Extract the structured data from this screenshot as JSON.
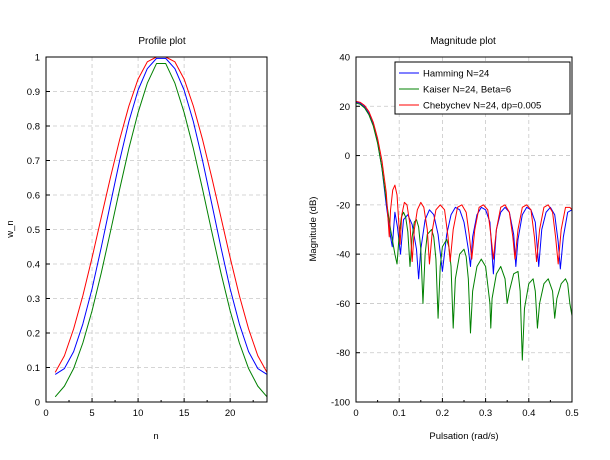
{
  "colors": {
    "hamming": "#0000ff",
    "kaiser": "#008000",
    "chebychev": "#ff0000",
    "grid": "#c8c8c8"
  },
  "chart_data": [
    {
      "type": "line",
      "title": "Profile plot",
      "xlabel": "n",
      "ylabel": "w_n",
      "xlim": [
        0,
        24
      ],
      "ylim": [
        0,
        1
      ],
      "xticks": [
        0,
        5,
        10,
        15,
        20
      ],
      "yticks": [
        0,
        0.1,
        0.2,
        0.3,
        0.4,
        0.5,
        0.6,
        0.7,
        0.8,
        0.9,
        1
      ],
      "xtick_labels": [
        "0",
        "5",
        "10",
        "15",
        "20"
      ],
      "ytick_labels": [
        "0",
        "0.1",
        "0.2",
        "0.3",
        "0.4",
        "0.5",
        "0.6",
        "0.7",
        "0.8",
        "0.9",
        "1"
      ],
      "grid": true,
      "x": [
        1,
        2,
        3,
        4,
        5,
        6,
        7,
        8,
        9,
        10,
        11,
        12,
        13,
        14,
        15,
        16,
        17,
        18,
        19,
        20,
        21,
        22,
        23,
        24
      ],
      "series": [
        {
          "key": "hamming",
          "color": "#0000ff",
          "values": [
            0.08,
            0.097,
            0.146,
            0.226,
            0.328,
            0.448,
            0.575,
            0.7,
            0.813,
            0.904,
            0.966,
            0.996,
            0.996,
            0.966,
            0.904,
            0.813,
            0.7,
            0.575,
            0.448,
            0.328,
            0.226,
            0.146,
            0.097,
            0.08
          ]
        },
        {
          "key": "kaiser",
          "color": "#008000",
          "values": [
            0.015,
            0.046,
            0.097,
            0.171,
            0.264,
            0.374,
            0.494,
            0.617,
            0.735,
            0.839,
            0.924,
            0.981,
            0.981,
            0.924,
            0.839,
            0.735,
            0.617,
            0.494,
            0.374,
            0.264,
            0.171,
            0.097,
            0.046,
            0.015
          ]
        },
        {
          "key": "chebychev",
          "color": "#ff0000",
          "values": [
            0.086,
            0.134,
            0.212,
            0.308,
            0.418,
            0.535,
            0.651,
            0.761,
            0.858,
            0.936,
            0.986,
            1.0,
            1.0,
            0.986,
            0.936,
            0.858,
            0.761,
            0.651,
            0.535,
            0.418,
            0.308,
            0.212,
            0.134,
            0.086
          ]
        }
      ]
    },
    {
      "type": "line",
      "title": "Magnitude plot",
      "xlabel": "Pulsation (rad/s)",
      "ylabel": "Magnitude (dB)",
      "xlim": [
        0,
        0.5
      ],
      "ylim": [
        -100,
        40
      ],
      "xticks": [
        0,
        0.1,
        0.2,
        0.3,
        0.4,
        0.5
      ],
      "yticks": [
        -100,
        -80,
        -60,
        -40,
        -20,
        0,
        20,
        40
      ],
      "xtick_labels": [
        "0",
        "0.1",
        "0.2",
        "0.3",
        "0.4",
        "0.5"
      ],
      "ytick_labels": [
        "-100",
        "-80",
        "-60",
        "-40",
        "-20",
        "0",
        "20",
        "40"
      ],
      "grid": true,
      "legend_position": "top-right",
      "legend": [
        "Hamming N=24",
        "Kaiser N=24, Beta=6",
        "Chebychev N=24, dp=0.005"
      ],
      "series": [
        {
          "key": "hamming",
          "name": "Hamming N=24",
          "color": "#0000ff",
          "points": [
            [
              0,
              21.7
            ],
            [
              0.01,
              21.2
            ],
            [
              0.02,
              19.7
            ],
            [
              0.03,
              17
            ],
            [
              0.04,
              12.5
            ],
            [
              0.05,
              5.5
            ],
            [
              0.06,
              -5
            ],
            [
              0.07,
              -20
            ],
            [
              0.08,
              -33
            ],
            [
              0.084,
              -37
            ],
            [
              0.09,
              -23
            ],
            [
              0.096,
              -29
            ],
            [
              0.103,
              -40
            ],
            [
              0.11,
              -26
            ],
            [
              0.12,
              -24
            ],
            [
              0.13,
              -28
            ],
            [
              0.14,
              -38
            ],
            [
              0.145,
              -50
            ],
            [
              0.15,
              -38
            ],
            [
              0.16,
              -26
            ],
            [
              0.17,
              -22
            ],
            [
              0.18,
              -24
            ],
            [
              0.19,
              -32
            ],
            [
              0.2,
              -47
            ],
            [
              0.21,
              -32
            ],
            [
              0.22,
              -24
            ],
            [
              0.23,
              -21
            ],
            [
              0.24,
              -22
            ],
            [
              0.25,
              -27
            ],
            [
              0.26,
              -38
            ],
            [
              0.265,
              -45
            ],
            [
              0.27,
              -33
            ],
            [
              0.28,
              -24
            ],
            [
              0.29,
              -21
            ],
            [
              0.3,
              -22
            ],
            [
              0.31,
              -27
            ],
            [
              0.318,
              -48
            ],
            [
              0.325,
              -30
            ],
            [
              0.335,
              -23
            ],
            [
              0.345,
              -21
            ],
            [
              0.355,
              -23
            ],
            [
              0.365,
              -32
            ],
            [
              0.37,
              -45
            ],
            [
              0.375,
              -34
            ],
            [
              0.385,
              -24
            ],
            [
              0.395,
              -21
            ],
            [
              0.405,
              -22
            ],
            [
              0.415,
              -27
            ],
            [
              0.423,
              -45
            ],
            [
              0.43,
              -30
            ],
            [
              0.44,
              -23
            ],
            [
              0.45,
              -21
            ],
            [
              0.46,
              -24
            ],
            [
              0.468,
              -35
            ],
            [
              0.473,
              -46
            ],
            [
              0.48,
              -33
            ],
            [
              0.49,
              -23
            ],
            [
              0.5,
              -22
            ]
          ]
        },
        {
          "key": "kaiser",
          "name": "Kaiser N=24, Beta=6",
          "color": "#008000",
          "points": [
            [
              0,
              21.3
            ],
            [
              0.01,
              20.8
            ],
            [
              0.02,
              19.3
            ],
            [
              0.03,
              16.5
            ],
            [
              0.04,
              12
            ],
            [
              0.05,
              5
            ],
            [
              0.06,
              -5
            ],
            [
              0.07,
              -18
            ],
            [
              0.08,
              -30
            ],
            [
              0.09,
              -40
            ],
            [
              0.095,
              -44
            ],
            [
              0.1,
              -32
            ],
            [
              0.105,
              -25
            ],
            [
              0.11,
              -23
            ],
            [
              0.115,
              -25
            ],
            [
              0.12,
              -31
            ],
            [
              0.125,
              -45
            ],
            [
              0.13,
              -33
            ],
            [
              0.135,
              -27
            ],
            [
              0.14,
              -26
            ],
            [
              0.145,
              -29
            ],
            [
              0.15,
              -38
            ],
            [
              0.155,
              -60
            ],
            [
              0.16,
              -40
            ],
            [
              0.165,
              -32
            ],
            [
              0.175,
              -30
            ],
            [
              0.18,
              -33
            ],
            [
              0.185,
              -42
            ],
            [
              0.19,
              -66
            ],
            [
              0.195,
              -45
            ],
            [
              0.2,
              -37
            ],
            [
              0.21,
              -34
            ],
            [
              0.215,
              -37
            ],
            [
              0.22,
              -45
            ],
            [
              0.225,
              -70
            ],
            [
              0.23,
              -50
            ],
            [
              0.24,
              -40
            ],
            [
              0.25,
              -38
            ],
            [
              0.255,
              -41
            ],
            [
              0.26,
              -50
            ],
            [
              0.265,
              -72
            ],
            [
              0.27,
              -55
            ],
            [
              0.28,
              -45
            ],
            [
              0.29,
              -42
            ],
            [
              0.3,
              -45
            ],
            [
              0.31,
              -60
            ],
            [
              0.312,
              -70
            ],
            [
              0.315,
              -58
            ],
            [
              0.325,
              -48
            ],
            [
              0.335,
              -45
            ],
            [
              0.345,
              -50
            ],
            [
              0.35,
              -60
            ],
            [
              0.355,
              -55
            ],
            [
              0.365,
              -48
            ],
            [
              0.375,
              -47
            ],
            [
              0.38,
              -55
            ],
            [
              0.385,
              -83
            ],
            [
              0.39,
              -62
            ],
            [
              0.4,
              -52
            ],
            [
              0.41,
              -50
            ],
            [
              0.415,
              -55
            ],
            [
              0.42,
              -70
            ],
            [
              0.425,
              -60
            ],
            [
              0.435,
              -52
            ],
            [
              0.445,
              -50
            ],
            [
              0.455,
              -55
            ],
            [
              0.46,
              -66
            ],
            [
              0.465,
              -58
            ],
            [
              0.475,
              -52
            ],
            [
              0.485,
              -50
            ],
            [
              0.49,
              -52
            ],
            [
              0.495,
              -60
            ],
            [
              0.5,
              -65
            ]
          ]
        },
        {
          "key": "chebychev",
          "name": "Chebychev N=24, dp=0.005",
          "color": "#ff0000",
          "points": [
            [
              0,
              22
            ],
            [
              0.01,
              21.6
            ],
            [
              0.02,
              20.3
            ],
            [
              0.03,
              17.8
            ],
            [
              0.04,
              13.5
            ],
            [
              0.05,
              7
            ],
            [
              0.06,
              -2
            ],
            [
              0.07,
              -15
            ],
            [
              0.077,
              -33
            ],
            [
              0.08,
              -22
            ],
            [
              0.085,
              -14
            ],
            [
              0.09,
              -12
            ],
            [
              0.095,
              -16
            ],
            [
              0.1,
              -30
            ],
            [
              0.102,
              -36
            ],
            [
              0.106,
              -24
            ],
            [
              0.112,
              -19
            ],
            [
              0.118,
              -20
            ],
            [
              0.125,
              -28
            ],
            [
              0.13,
              -43
            ],
            [
              0.135,
              -30
            ],
            [
              0.142,
              -22
            ],
            [
              0.15,
              -19
            ],
            [
              0.157,
              -21
            ],
            [
              0.165,
              -30
            ],
            [
              0.17,
              -44
            ],
            [
              0.177,
              -30
            ],
            [
              0.185,
              -22
            ],
            [
              0.195,
              -20
            ],
            [
              0.205,
              -22
            ],
            [
              0.213,
              -33
            ],
            [
              0.218,
              -43
            ],
            [
              0.225,
              -30
            ],
            [
              0.235,
              -21
            ],
            [
              0.245,
              -20
            ],
            [
              0.255,
              -23
            ],
            [
              0.262,
              -32
            ],
            [
              0.268,
              -42
            ],
            [
              0.275,
              -30
            ],
            [
              0.285,
              -21
            ],
            [
              0.295,
              -20
            ],
            [
              0.305,
              -22
            ],
            [
              0.312,
              -32
            ],
            [
              0.318,
              -42
            ],
            [
              0.325,
              -30
            ],
            [
              0.335,
              -21
            ],
            [
              0.345,
              -20
            ],
            [
              0.355,
              -23
            ],
            [
              0.363,
              -33
            ],
            [
              0.368,
              -42
            ],
            [
              0.375,
              -30
            ],
            [
              0.385,
              -21
            ],
            [
              0.395,
              -20
            ],
            [
              0.405,
              -22
            ],
            [
              0.413,
              -33
            ],
            [
              0.418,
              -43
            ],
            [
              0.425,
              -30
            ],
            [
              0.435,
              -21
            ],
            [
              0.445,
              -20
            ],
            [
              0.455,
              -23
            ],
            [
              0.462,
              -33
            ],
            [
              0.468,
              -44
            ],
            [
              0.475,
              -30
            ],
            [
              0.485,
              -21
            ],
            [
              0.495,
              -21
            ],
            [
              0.5,
              -22
            ]
          ]
        }
      ]
    }
  ]
}
